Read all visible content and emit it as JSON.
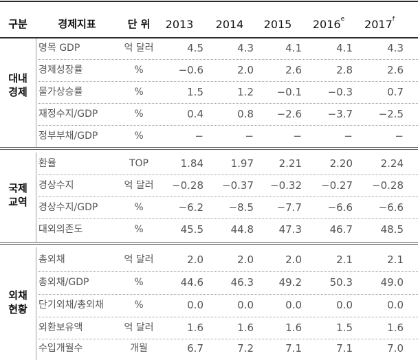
{
  "header": {
    "gubun": "구분",
    "indicator": "경제지표",
    "unit": "단 위",
    "years": [
      {
        "year": "2013",
        "sup": ""
      },
      {
        "year": "2014",
        "sup": ""
      },
      {
        "year": "2015",
        "sup": ""
      },
      {
        "year": "2016",
        "sup": "e"
      },
      {
        "year": "2017",
        "sup": "f"
      }
    ]
  },
  "groups": [
    {
      "line1": "대내",
      "line2": "경제",
      "rows": [
        {
          "name": "명목 GDP",
          "unit": "억 달러",
          "values": [
            "4.5",
            "4.3",
            "4.1",
            "4.1",
            "4.3"
          ]
        },
        {
          "name": "경제성장률",
          "unit": "%",
          "values": [
            "−0.6",
            "2.0",
            "2.6",
            "2.8",
            "2.6"
          ]
        },
        {
          "name": "물가상승률",
          "unit": "%",
          "values": [
            "1.5",
            "1.2",
            "−0.1",
            "−0.3",
            "0.7"
          ]
        },
        {
          "name": "재정수지/GDP",
          "unit": "%",
          "values": [
            "0.4",
            "0.8",
            "−2.6",
            "−3.7",
            "−2.5"
          ]
        },
        {
          "name": "정부부채/GDP",
          "unit": "%",
          "values": [
            "−",
            "−",
            "−",
            "−",
            "−"
          ]
        }
      ]
    },
    {
      "line1": "국제",
      "line2": "교역",
      "rows": [
        {
          "name": "환율",
          "unit": "TOP",
          "values": [
            "1.84",
            "1.97",
            "2.21",
            "2.20",
            "2.24"
          ]
        },
        {
          "name": "경상수지",
          "unit": "억 달러",
          "values": [
            "−0.28",
            "−0.37",
            "−0.32",
            "−0.27",
            "−0.28"
          ]
        },
        {
          "name": "경상수지/GDP",
          "unit": "%",
          "values": [
            "−6.2",
            "−8.5",
            "−7.7",
            "−6.6",
            "−6.6"
          ]
        },
        {
          "name": "대외의존도",
          "unit": "%",
          "values": [
            "45.5",
            "44.8",
            "47.3",
            "46.7",
            "48.5"
          ]
        }
      ]
    },
    {
      "line1": "외채",
      "line2": "현황",
      "rows": [
        {
          "name": "총외채",
          "unit": "억 달러",
          "values": [
            "2.0",
            "2.0",
            "2.0",
            "2.1",
            "2.1"
          ]
        },
        {
          "name": "총외채/GDP",
          "unit": "%",
          "values": [
            "44.6",
            "46.3",
            "49.2",
            "50.3",
            "49.0"
          ]
        },
        {
          "name": "단기외채/총외채",
          "unit": "%",
          "values": [
            "0.0",
            "0.0",
            "0.0",
            "0.0",
            "0.0"
          ]
        },
        {
          "name": "외환보유액",
          "unit": "억 달러",
          "values": [
            "1.6",
            "1.6",
            "1.6",
            "1.5",
            "1.6"
          ]
        },
        {
          "name": "수입개월수",
          "unit": "개월",
          "values": [
            "6.7",
            "7.2",
            "7.1",
            "7.1",
            "7.0"
          ]
        }
      ]
    }
  ]
}
